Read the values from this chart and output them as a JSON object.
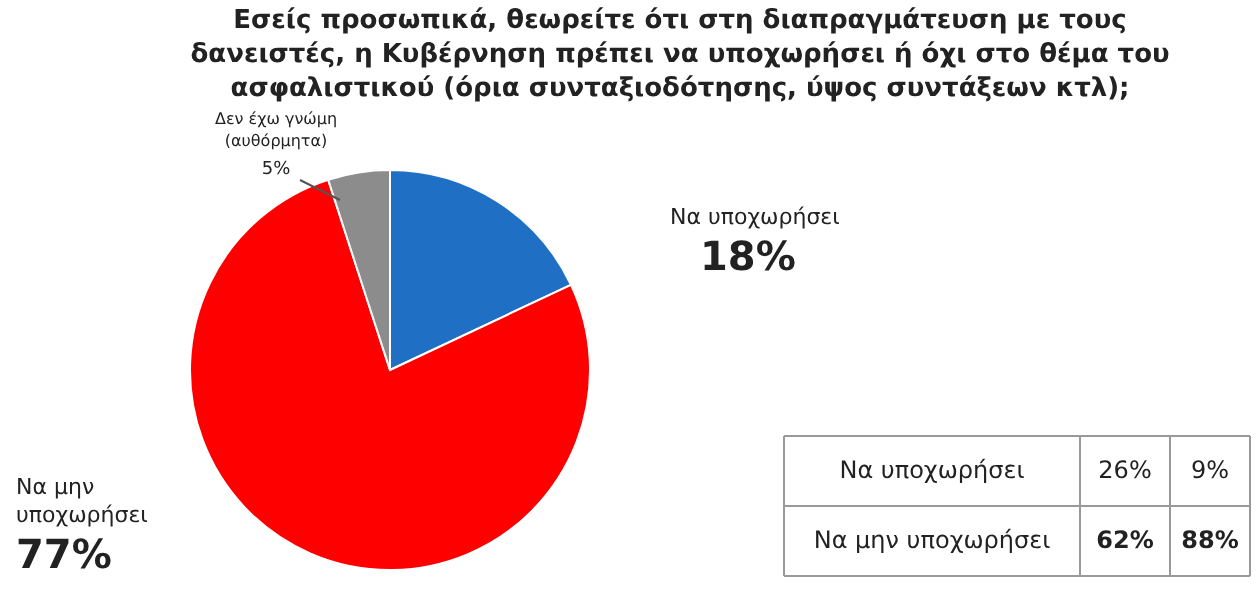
{
  "chart_data": {
    "type": "pie",
    "title": "Εσείς προσωπικά, θεωρείτε ότι στη διαπραγμάτευση με τους δανειστές, η Κυβέρνηση πρέπει να υποχωρήσει ή όχι στο θέμα του ασφαλιστικού (όρια συνταξιοδότησης, ύψος συντάξεων κτλ);",
    "categories": [
      "Να υποχωρήσει",
      "Να μην υποχωρήσει",
      "Δεν έχω γνώμη (αυθόρμητα)"
    ],
    "values": [
      18,
      77,
      5
    ],
    "colors": [
      "#1f6fc5",
      "#ff0000",
      "#8c8c8c"
    ],
    "value_labels": [
      "18%",
      "77%",
      "5%"
    ],
    "annotations": [
      "Να υποχωρήσει",
      "26%",
      "9%",
      "Να μην υποχωρήσει",
      "62%",
      "88%"
    ]
  }
}
